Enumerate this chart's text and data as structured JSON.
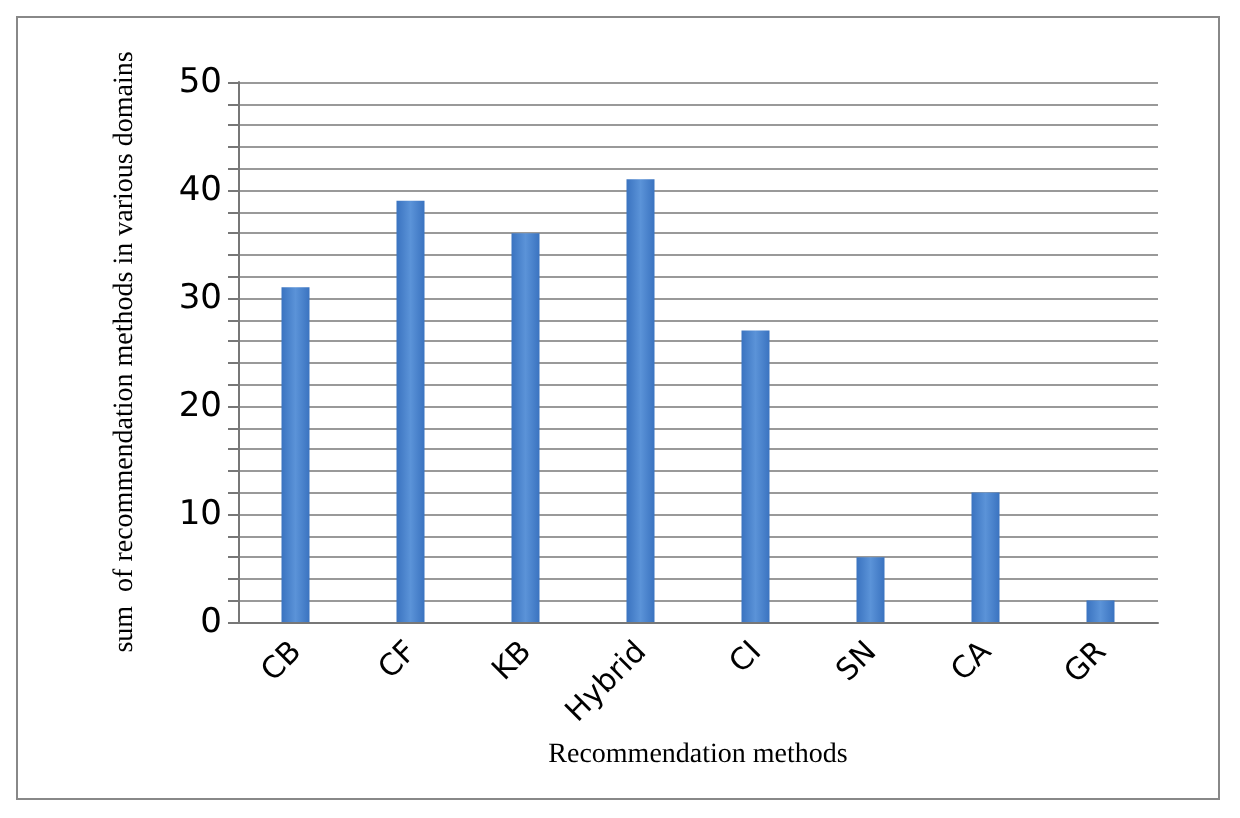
{
  "chart_data": {
    "type": "bar",
    "xlabel": "Recommendation methods",
    "ylabel": "sum  of recommendation methods in various domains",
    "categories": [
      "CB",
      "CF",
      "KB",
      "Hybrid",
      "CI",
      "SN",
      "CA",
      "GR"
    ],
    "values": [
      31,
      39,
      36,
      41,
      27,
      6,
      12,
      2
    ],
    "color": "#3a73c0",
    "ylim": [
      0,
      50
    ],
    "yticks": [
      0,
      {
        "value": 2,
        "label": null
      },
      {
        "value": 4,
        "label": null
      },
      {
        "value": 6,
        "label": null
      },
      {
        "value": 8,
        "label": null
      },
      10,
      {
        "value": 12,
        "label": null
      },
      {
        "value": 14,
        "label": null
      },
      {
        "value": 16,
        "label": null
      },
      {
        "value": 18,
        "label": null
      },
      20,
      {
        "value": 22,
        "label": null
      },
      {
        "value": 24,
        "label": null
      },
      {
        "value": 26,
        "label": null
      },
      {
        "value": 28,
        "label": null
      },
      30,
      {
        "value": 32,
        "label": null
      },
      {
        "value": 34,
        "label": null
      },
      {
        "value": 36,
        "label": null
      },
      {
        "value": 38,
        "label": null
      },
      40,
      {
        "value": 42,
        "label": null
      },
      {
        "value": 44,
        "label": null
      },
      {
        "value": 46,
        "label": null
      },
      {
        "value": 48,
        "label": null
      },
      50
    ],
    "grid": "y"
  }
}
